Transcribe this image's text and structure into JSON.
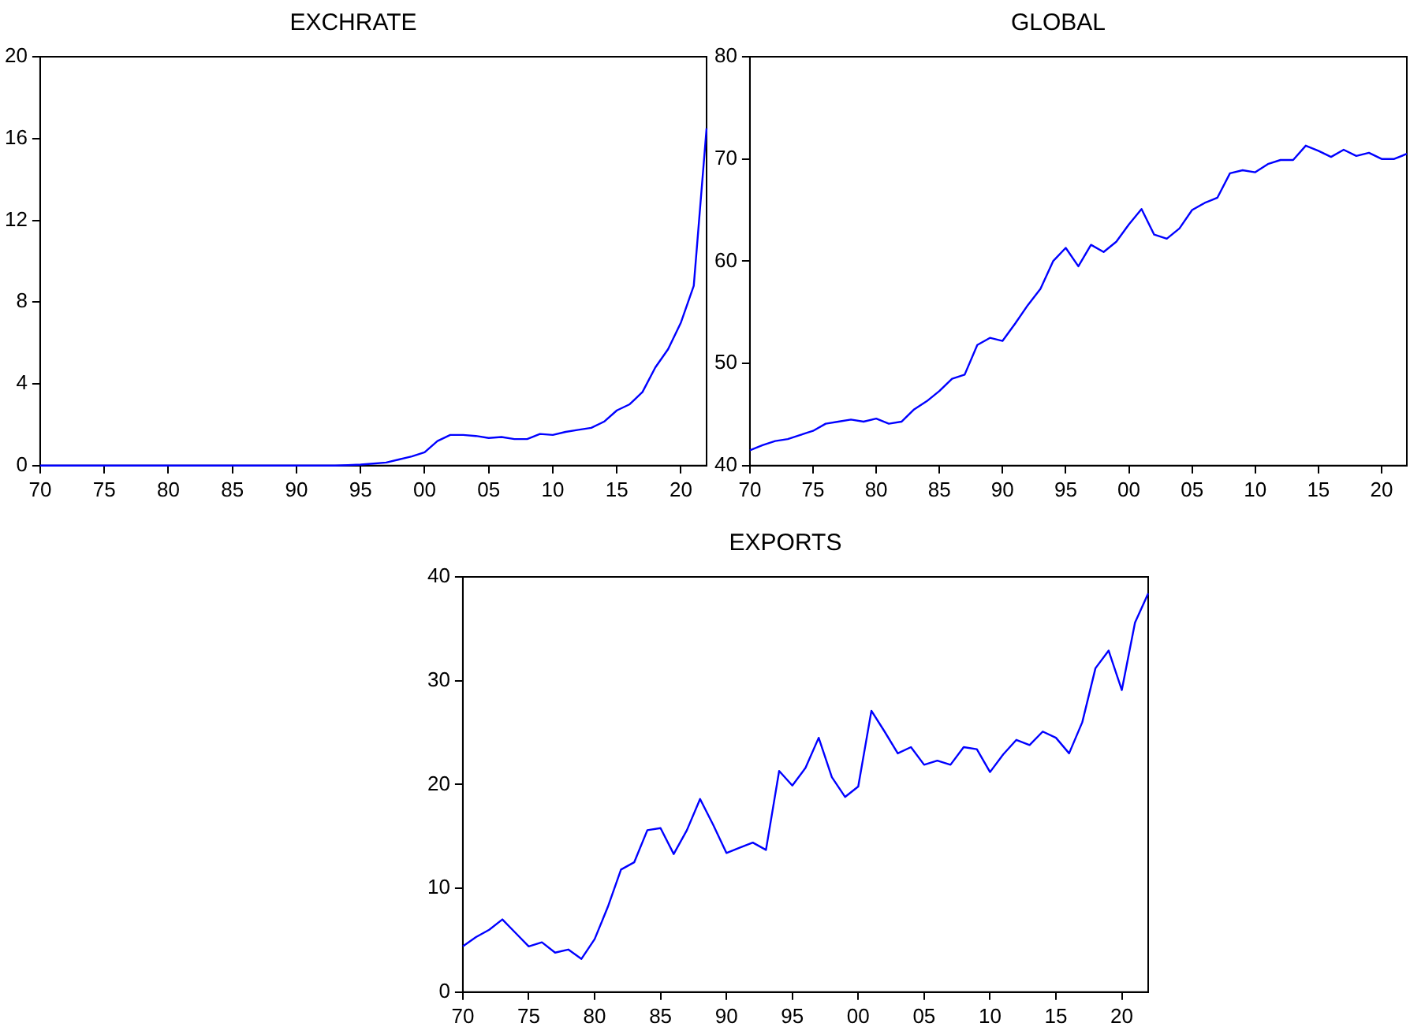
{
  "chart_data": [
    {
      "type": "line",
      "title": "EXCHRATE",
      "x": [
        1970,
        1971,
        1972,
        1973,
        1974,
        1975,
        1976,
        1977,
        1978,
        1979,
        1980,
        1981,
        1982,
        1983,
        1984,
        1985,
        1986,
        1987,
        1988,
        1989,
        1990,
        1991,
        1992,
        1993,
        1994,
        1995,
        1996,
        1997,
        1998,
        1999,
        2000,
        2001,
        2002,
        2003,
        2004,
        2005,
        2006,
        2007,
        2008,
        2009,
        2010,
        2011,
        2012,
        2013,
        2014,
        2015,
        2016,
        2017,
        2018,
        2019,
        2020,
        2021,
        2022
      ],
      "series": [
        {
          "color": "#0000ff",
          "values": [
            0,
            0,
            0,
            0,
            0,
            0,
            0,
            0,
            0,
            0,
            0,
            0,
            0,
            0,
            0,
            0,
            0,
            0,
            0,
            0,
            0,
            0,
            0,
            0,
            0.02,
            0.05,
            0.1,
            0.15,
            0.3,
            0.45,
            0.65,
            1.2,
            1.5,
            1.5,
            1.45,
            1.35,
            1.4,
            1.3,
            1.3,
            1.55,
            1.5,
            1.65,
            1.75,
            1.85,
            2.15,
            2.7,
            3.0,
            3.6,
            4.8,
            5.7,
            7.0,
            8.8,
            16.5
          ]
        }
      ],
      "xlim": [
        1970,
        2022
      ],
      "xticks": [
        {
          "value": 1970,
          "label": "70"
        },
        {
          "value": 1975,
          "label": "75"
        },
        {
          "value": 1980,
          "label": "80"
        },
        {
          "value": 1985,
          "label": "85"
        },
        {
          "value": 1990,
          "label": "90"
        },
        {
          "value": 1995,
          "label": "95"
        },
        {
          "value": 2000,
          "label": "00"
        },
        {
          "value": 2005,
          "label": "05"
        },
        {
          "value": 2010,
          "label": "10"
        },
        {
          "value": 2015,
          "label": "15"
        },
        {
          "value": 2020,
          "label": "20"
        }
      ],
      "ylim": [
        0,
        20
      ],
      "yticks": [
        0,
        4,
        8,
        12,
        16,
        20
      ],
      "grid": false,
      "legend": false,
      "marker": "none",
      "line_style": "solid"
    },
    {
      "type": "line",
      "title": "GLOBAL",
      "x": [
        1970,
        1971,
        1972,
        1973,
        1974,
        1975,
        1976,
        1977,
        1978,
        1979,
        1980,
        1981,
        1982,
        1983,
        1984,
        1985,
        1986,
        1987,
        1988,
        1989,
        1990,
        1991,
        1992,
        1993,
        1994,
        1995,
        1996,
        1997,
        1998,
        1999,
        2000,
        2001,
        2002,
        2003,
        2004,
        2005,
        2006,
        2007,
        2008,
        2009,
        2010,
        2011,
        2012,
        2013,
        2014,
        2015,
        2016,
        2017,
        2018,
        2019,
        2020,
        2021,
        2022
      ],
      "series": [
        {
          "color": "#0000ff",
          "values": [
            41.5,
            42.0,
            42.4,
            42.6,
            43.0,
            43.4,
            44.1,
            44.3,
            44.5,
            44.3,
            44.6,
            44.1,
            44.3,
            45.5,
            46.3,
            47.3,
            48.5,
            48.9,
            51.8,
            52.5,
            52.2,
            53.9,
            55.7,
            57.3,
            60.0,
            61.3,
            59.5,
            61.6,
            60.9,
            61.9,
            63.6,
            65.1,
            62.6,
            62.2,
            63.2,
            65.0,
            65.7,
            66.2,
            68.6,
            68.9,
            68.7,
            69.5,
            69.9,
            69.9,
            71.3,
            70.8,
            70.2,
            70.9,
            70.3,
            70.6,
            70.0,
            70.0,
            70.5
          ]
        }
      ],
      "xlim": [
        1970,
        2022
      ],
      "xticks": [
        {
          "value": 1970,
          "label": "70"
        },
        {
          "value": 1975,
          "label": "75"
        },
        {
          "value": 1980,
          "label": "80"
        },
        {
          "value": 1985,
          "label": "85"
        },
        {
          "value": 1990,
          "label": "90"
        },
        {
          "value": 1995,
          "label": "95"
        },
        {
          "value": 2000,
          "label": "00"
        },
        {
          "value": 2005,
          "label": "05"
        },
        {
          "value": 2010,
          "label": "10"
        },
        {
          "value": 2015,
          "label": "15"
        },
        {
          "value": 2020,
          "label": "20"
        }
      ],
      "ylim": [
        40,
        80
      ],
      "yticks": [
        40,
        50,
        60,
        70,
        80
      ],
      "grid": false,
      "legend": false,
      "marker": "none",
      "line_style": "solid"
    },
    {
      "type": "line",
      "title": "EXPORTS",
      "x": [
        1970,
        1971,
        1972,
        1973,
        1974,
        1975,
        1976,
        1977,
        1978,
        1979,
        1980,
        1981,
        1982,
        1983,
        1984,
        1985,
        1986,
        1987,
        1988,
        1989,
        1990,
        1991,
        1992,
        1993,
        1994,
        1995,
        1996,
        1997,
        1998,
        1999,
        2000,
        2001,
        2002,
        2003,
        2004,
        2005,
        2006,
        2007,
        2008,
        2009,
        2010,
        2011,
        2012,
        2013,
        2014,
        2015,
        2016,
        2017,
        2018,
        2019,
        2020,
        2021,
        2022
      ],
      "series": [
        {
          "color": "#0000ff",
          "values": [
            4.4,
            5.3,
            6.0,
            7.0,
            5.7,
            4.4,
            4.8,
            3.8,
            4.1,
            3.2,
            5.1,
            8.2,
            11.8,
            12.5,
            15.6,
            15.8,
            13.3,
            15.6,
            18.6,
            16.1,
            13.4,
            13.9,
            14.4,
            13.7,
            21.3,
            19.9,
            21.6,
            24.5,
            20.7,
            18.8,
            19.8,
            27.1,
            25.1,
            23.0,
            23.6,
            21.9,
            22.3,
            21.9,
            23.6,
            23.4,
            21.2,
            22.9,
            24.3,
            23.8,
            25.1,
            24.5,
            23.0,
            26.0,
            31.2,
            32.9,
            29.1,
            35.6,
            38.4
          ]
        }
      ],
      "xlim": [
        1970,
        2022
      ],
      "xticks": [
        {
          "value": 1970,
          "label": "70"
        },
        {
          "value": 1975,
          "label": "75"
        },
        {
          "value": 1980,
          "label": "80"
        },
        {
          "value": 1985,
          "label": "85"
        },
        {
          "value": 1990,
          "label": "90"
        },
        {
          "value": 1995,
          "label": "95"
        },
        {
          "value": 2000,
          "label": "00"
        },
        {
          "value": 2005,
          "label": "05"
        },
        {
          "value": 2010,
          "label": "10"
        },
        {
          "value": 2015,
          "label": "15"
        },
        {
          "value": 2020,
          "label": "20"
        }
      ],
      "ylim": [
        0,
        40
      ],
      "yticks": [
        0,
        10,
        20,
        30,
        40
      ],
      "grid": false,
      "legend": false,
      "marker": "none",
      "line_style": "solid"
    }
  ]
}
